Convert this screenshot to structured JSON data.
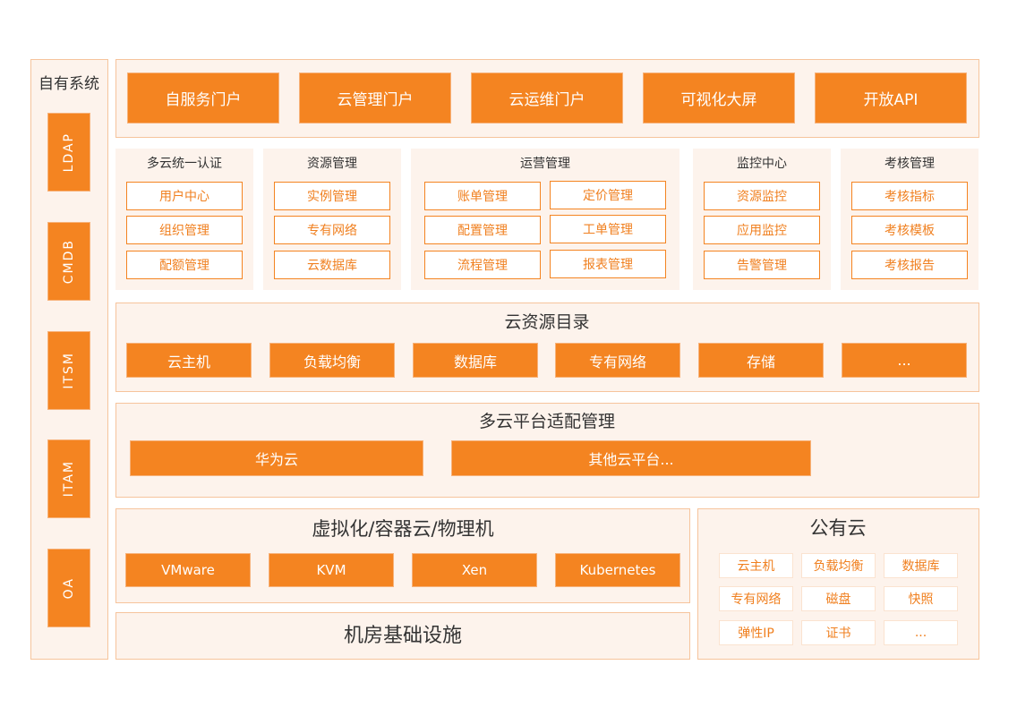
{
  "left_column": {
    "title": "自有系统",
    "items": [
      "LDAP",
      "CMDB",
      "ITSM",
      "ITAM",
      "OA"
    ]
  },
  "portals": [
    "自服务门户",
    "云管理门户",
    "云运维门户",
    "可视化大屏",
    "开放API"
  ],
  "modules": [
    {
      "title": "多云统一认证",
      "items": [
        "用户中心",
        "组织管理",
        "配额管理"
      ]
    },
    {
      "title": "资源管理",
      "items": [
        "实例管理",
        "专有网络",
        "云数据库"
      ]
    },
    {
      "title": "运营管理",
      "items": [
        "账单管理",
        "定价管理",
        "配置管理",
        "工单管理",
        "流程管理",
        "报表管理"
      ]
    },
    {
      "title": "监控中心",
      "items": [
        "资源监控",
        "应用监控",
        "告警管理"
      ]
    },
    {
      "title": "考核管理",
      "items": [
        "考核指标",
        "考核模板",
        "考核报告"
      ]
    }
  ],
  "catalog": {
    "title": "云资源目录",
    "items": [
      "云主机",
      "负载均衡",
      "数据库",
      "专有网络",
      "存储",
      "..."
    ]
  },
  "adapter": {
    "title": "多云平台适配管理",
    "items": [
      "华为云",
      "其他云平台..."
    ]
  },
  "virtualization": {
    "title": "虚拟化/容器云/物理机",
    "items": [
      "VMware",
      "KVM",
      "Xen",
      "Kubernetes"
    ]
  },
  "datacenter": {
    "title": "机房基础设施"
  },
  "public_cloud": {
    "title": "公有云",
    "items": [
      "云主机",
      "负载均衡",
      "数据库",
      "专有网络",
      "磁盘",
      "快照",
      "弹性IP",
      "证书",
      "..."
    ]
  },
  "colors": {
    "accent": "#f48421",
    "panel": "#fdf3ec",
    "border": "#f6c49c"
  }
}
